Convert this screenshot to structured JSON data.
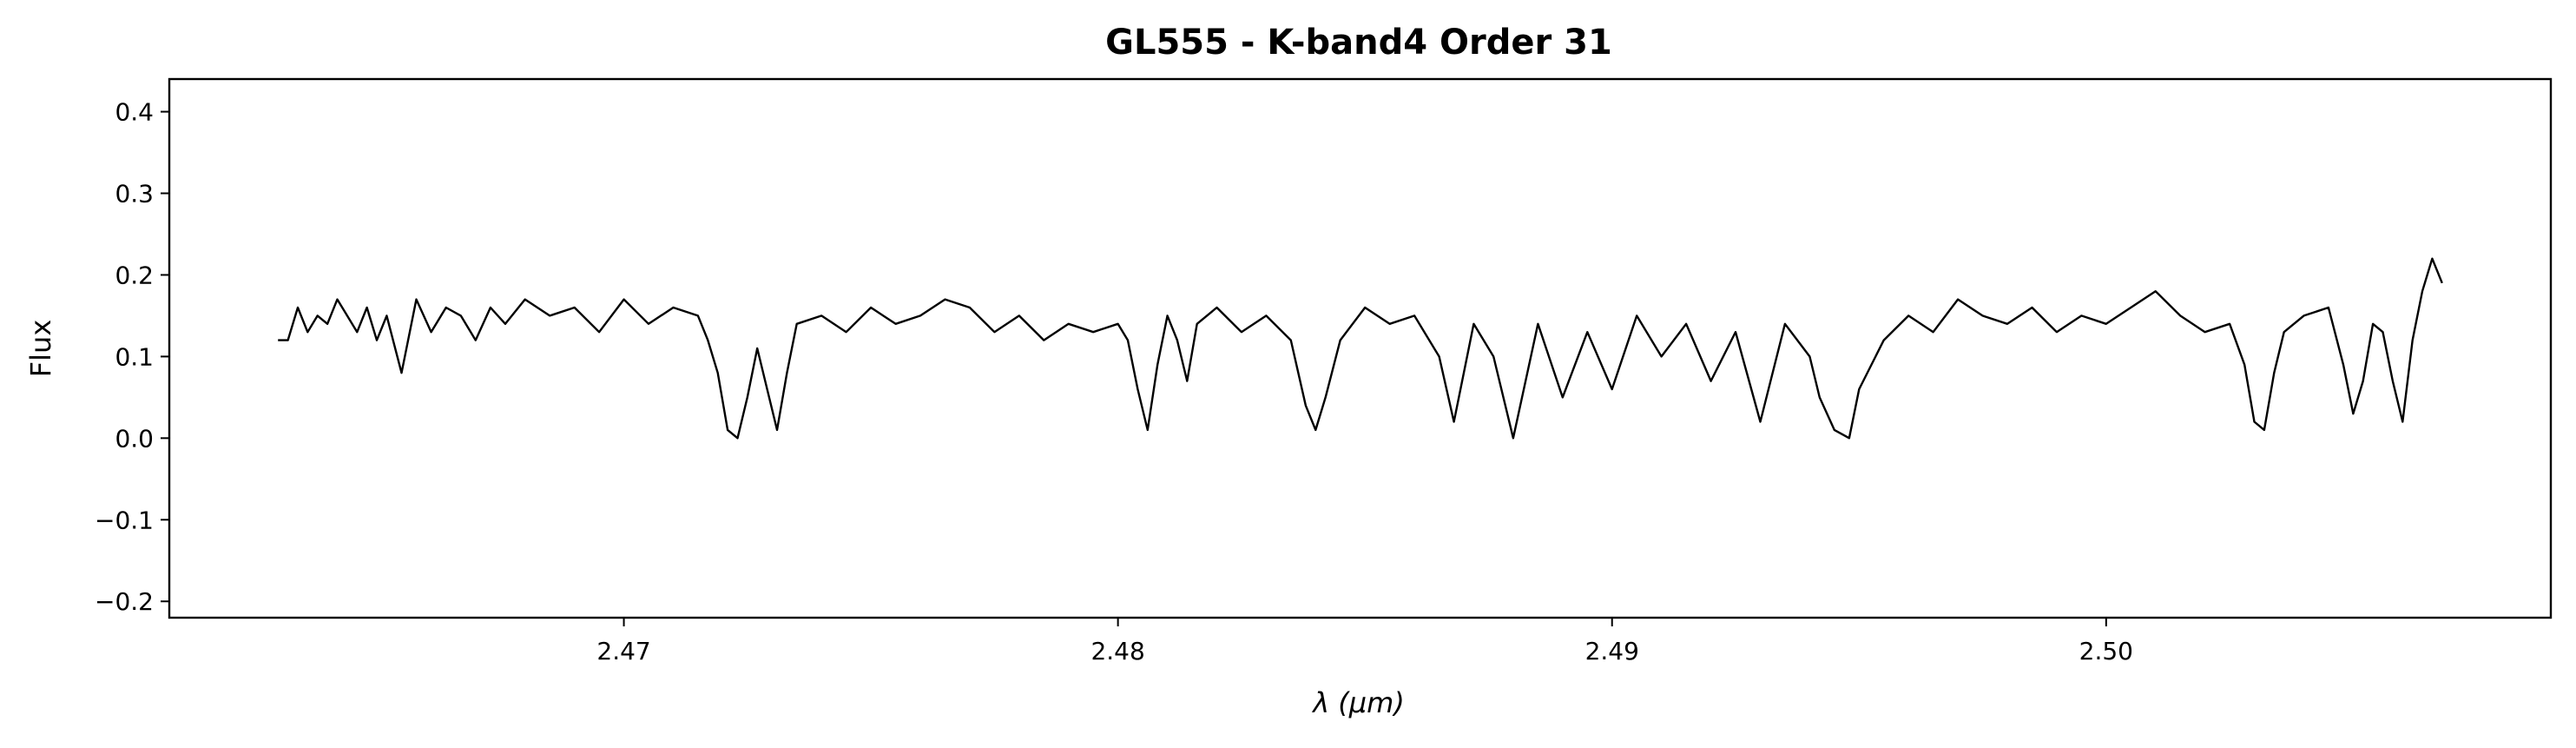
{
  "chart_data": {
    "type": "line",
    "title": "GL555 - K-band4 Order 31",
    "xlabel": "λ (μm)",
    "ylabel": "Flux",
    "xlim": [
      2.4608,
      2.509
    ],
    "ylim": [
      -0.22,
      0.44
    ],
    "x_ticks": [
      2.47,
      2.48,
      2.49,
      2.5
    ],
    "x_tick_labels": [
      "2.47",
      "2.48",
      "2.49",
      "2.50"
    ],
    "y_ticks": [
      -0.2,
      -0.1,
      0.0,
      0.1,
      0.2,
      0.3,
      0.4
    ],
    "y_tick_labels": [
      "−0.2",
      "−0.1",
      "0.0",
      "0.1",
      "0.2",
      "0.3",
      "0.4"
    ],
    "grid": false,
    "line_color": "#000000",
    "series": [
      {
        "x": [
          2.463,
          2.4632,
          2.4634,
          2.4636,
          2.4638,
          2.464,
          2.4642,
          2.4644,
          2.4646,
          2.4648,
          2.465,
          2.4652,
          2.4655,
          2.4658,
          2.4661,
          2.4664,
          2.4667,
          2.467,
          2.4673,
          2.4676,
          2.468,
          2.4685,
          2.469,
          2.4695,
          2.47,
          2.4705,
          2.471,
          2.4715,
          2.4717,
          2.4719,
          2.4721,
          2.4723,
          2.4725,
          2.4727,
          2.4729,
          2.4731,
          2.4733,
          2.4735,
          2.474,
          2.4745,
          2.475,
          2.4755,
          2.476,
          2.4765,
          2.477,
          2.4775,
          2.478,
          2.4785,
          2.479,
          2.4795,
          2.48,
          2.4802,
          2.4804,
          2.4806,
          2.4808,
          2.481,
          2.4812,
          2.4814,
          2.4816,
          2.482,
          2.4825,
          2.483,
          2.4835,
          2.4838,
          2.484,
          2.4842,
          2.4845,
          2.485,
          2.4855,
          2.486,
          2.4865,
          2.4868,
          2.4872,
          2.4876,
          2.488,
          2.4885,
          2.489,
          2.4895,
          2.49,
          2.4905,
          2.491,
          2.4915,
          2.492,
          2.4925,
          2.493,
          2.4935,
          2.494,
          2.4942,
          2.4945,
          2.4948,
          2.495,
          2.4955,
          2.496,
          2.4965,
          2.497,
          2.4975,
          2.498,
          2.4985,
          2.499,
          2.4995,
          2.5,
          2.5005,
          2.501,
          2.5015,
          2.502,
          2.5025,
          2.5028,
          2.503,
          2.5032,
          2.5034,
          2.5036,
          2.504,
          2.5045,
          2.5048,
          2.505,
          2.5052,
          2.5054,
          2.5056,
          2.5058,
          2.506,
          2.5062,
          2.5064,
          2.5066,
          2.5068
        ],
        "y": [
          0.12,
          0.12,
          0.16,
          0.13,
          0.15,
          0.14,
          0.17,
          0.15,
          0.13,
          0.16,
          0.12,
          0.15,
          0.08,
          0.17,
          0.13,
          0.16,
          0.15,
          0.12,
          0.16,
          0.14,
          0.17,
          0.15,
          0.16,
          0.13,
          0.17,
          0.14,
          0.16,
          0.15,
          0.12,
          0.08,
          0.01,
          0.0,
          0.05,
          0.11,
          0.06,
          0.01,
          0.08,
          0.14,
          0.15,
          0.13,
          0.16,
          0.14,
          0.15,
          0.17,
          0.16,
          0.13,
          0.15,
          0.12,
          0.14,
          0.13,
          0.14,
          0.12,
          0.06,
          0.01,
          0.09,
          0.15,
          0.12,
          0.07,
          0.14,
          0.16,
          0.13,
          0.15,
          0.12,
          0.04,
          0.01,
          0.05,
          0.12,
          0.16,
          0.14,
          0.15,
          0.1,
          0.02,
          0.14,
          0.1,
          0.0,
          0.14,
          0.05,
          0.13,
          0.06,
          0.15,
          0.1,
          0.14,
          0.07,
          0.13,
          0.02,
          0.14,
          0.1,
          0.05,
          0.01,
          0.0,
          0.06,
          0.12,
          0.15,
          0.13,
          0.17,
          0.15,
          0.14,
          0.16,
          0.13,
          0.15,
          0.14,
          0.16,
          0.18,
          0.15,
          0.13,
          0.14,
          0.09,
          0.02,
          0.01,
          0.08,
          0.13,
          0.15,
          0.16,
          0.09,
          0.03,
          0.07,
          0.14,
          0.13,
          0.07,
          0.02,
          0.12,
          0.18,
          0.22,
          0.19
        ]
      }
    ]
  }
}
